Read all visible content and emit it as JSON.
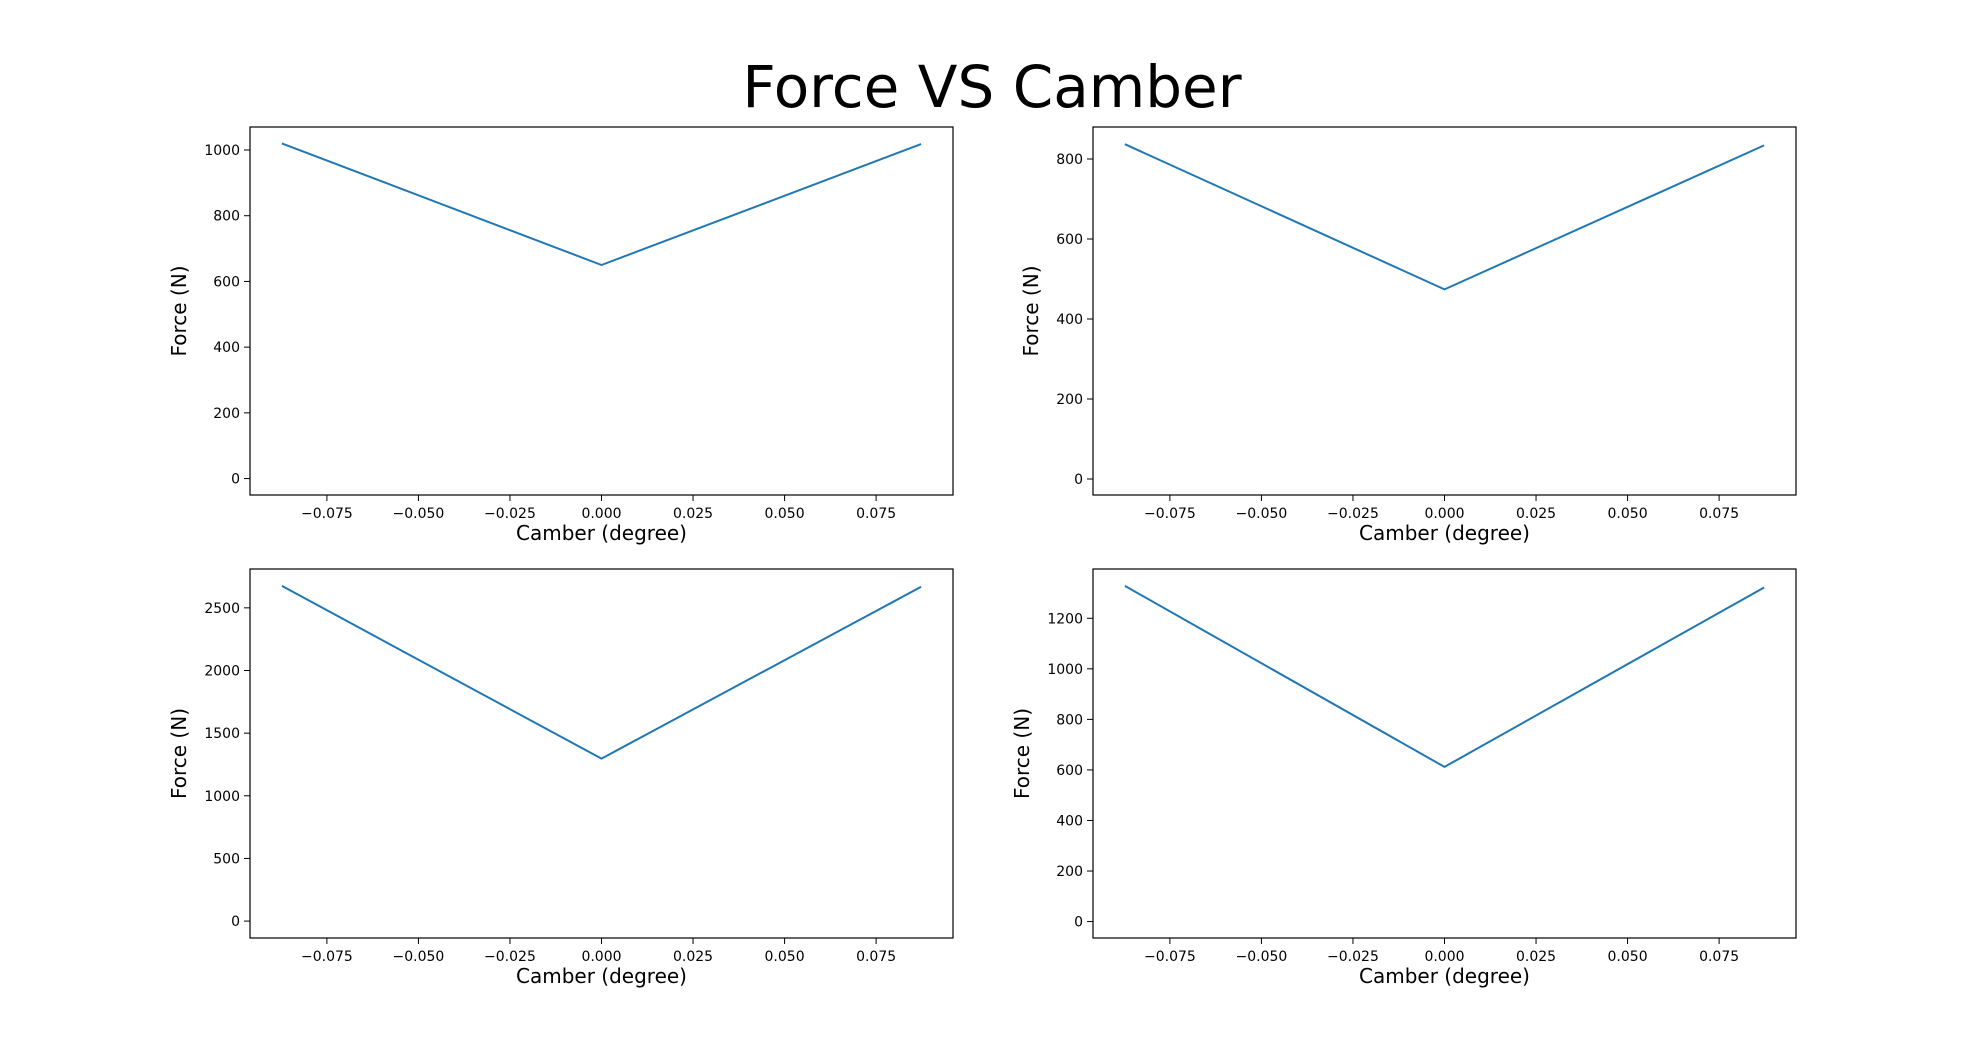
{
  "figure": {
    "title": "Force VS Camber",
    "line_color": "#1f77b4"
  },
  "chart_data": [
    {
      "type": "line",
      "xlabel": "Camber (degree)",
      "ylabel": "Force (N)",
      "xlim": [
        -0.096,
        0.096
      ],
      "ylim": [
        -50,
        1070
      ],
      "xticks": [
        -0.075,
        -0.05,
        -0.025,
        0.0,
        0.025,
        0.05,
        0.075
      ],
      "xtick_labels": [
        "−0.075",
        "−0.050",
        "−0.025",
        "0.000",
        "0.025",
        "0.050",
        "0.075"
      ],
      "yticks": [
        0,
        200,
        400,
        600,
        800,
        1000
      ],
      "ytick_labels": [
        "0",
        "200",
        "400",
        "600",
        "800",
        "1000"
      ],
      "series": [
        {
          "x": [
            -0.0873,
            0.0,
            0.0873
          ],
          "y": [
            1020,
            650,
            1018
          ]
        }
      ]
    },
    {
      "type": "line",
      "xlabel": "Camber (degree)",
      "ylabel": "Force (N)",
      "xlim": [
        -0.096,
        0.096
      ],
      "ylim": [
        -40,
        880
      ],
      "xticks": [
        -0.075,
        -0.05,
        -0.025,
        0.0,
        0.025,
        0.05,
        0.075
      ],
      "xtick_labels": [
        "−0.075",
        "−0.050",
        "−0.025",
        "0.000",
        "0.025",
        "0.050",
        "0.075"
      ],
      "yticks": [
        0,
        200,
        400,
        600,
        800
      ],
      "ytick_labels": [
        "0",
        "200",
        "400",
        "600",
        "800"
      ],
      "series": [
        {
          "x": [
            -0.0873,
            0.0,
            0.0873
          ],
          "y": [
            837,
            474,
            834
          ]
        }
      ]
    },
    {
      "type": "line",
      "xlabel": "Camber (degree)",
      "ylabel": "Force (N)",
      "xlim": [
        -0.096,
        0.096
      ],
      "ylim": [
        -135,
        2810
      ],
      "xticks": [
        -0.075,
        -0.05,
        -0.025,
        0.0,
        0.025,
        0.05,
        0.075
      ],
      "xtick_labels": [
        "−0.075",
        "−0.050",
        "−0.025",
        "0.000",
        "0.025",
        "0.050",
        "0.075"
      ],
      "yticks": [
        0,
        500,
        1000,
        1500,
        2000,
        2500
      ],
      "ytick_labels": [
        "0",
        "500",
        "1000",
        "1500",
        "2000",
        "2500"
      ],
      "series": [
        {
          "x": [
            -0.0873,
            0.0,
            0.0873
          ],
          "y": [
            2675,
            1297,
            2668
          ]
        }
      ]
    },
    {
      "type": "line",
      "xlabel": "Camber (degree)",
      "ylabel": "Force (N)",
      "xlim": [
        -0.096,
        0.096
      ],
      "ylim": [
        -65,
        1395
      ],
      "xticks": [
        -0.075,
        -0.05,
        -0.025,
        0.0,
        0.025,
        0.05,
        0.075
      ],
      "xtick_labels": [
        "−0.075",
        "−0.050",
        "−0.025",
        "0.000",
        "0.025",
        "0.050",
        "0.075"
      ],
      "yticks": [
        0,
        200,
        400,
        600,
        800,
        1000,
        1200
      ],
      "ytick_labels": [
        "0",
        "200",
        "400",
        "600",
        "800",
        "1000",
        "1200"
      ],
      "series": [
        {
          "x": [
            -0.0873,
            0.0,
            0.0873
          ],
          "y": [
            1328,
            612,
            1322
          ]
        }
      ]
    }
  ]
}
